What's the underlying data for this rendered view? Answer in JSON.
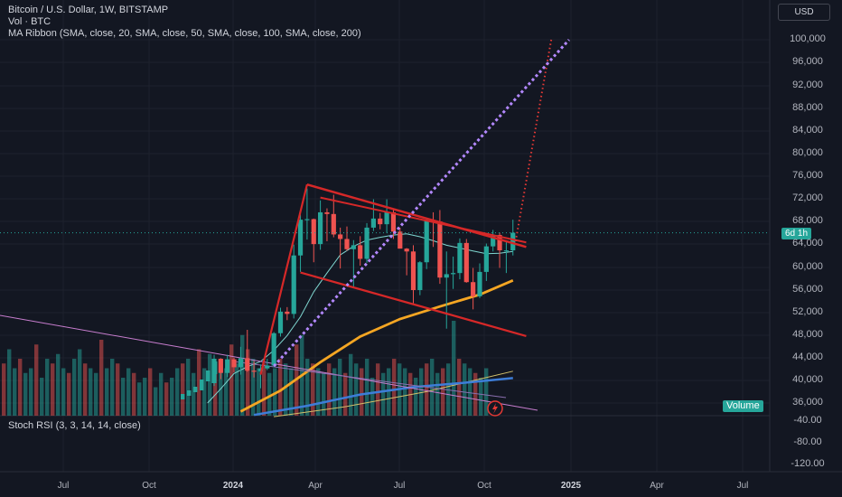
{
  "header": {
    "title": "Bitcoin / U.S. Dollar, 1W, BITSTAMP",
    "volume_label": "Vol · BTC",
    "ma_label": "MA Ribbon (SMA, close, 20, SMA, close, 50, SMA, close, 100, SMA, close, 200)",
    "stoch_label": "Stoch RSI (3, 3, 14, 14, close)"
  },
  "currency_button": "USD",
  "price_badge": "6d 1h",
  "volume_badge": "Volume",
  "colors": {
    "background": "#131722",
    "up": "#26a69a",
    "down": "#ef5350",
    "trendline": "#d62828",
    "projection_red": "#e53935",
    "projection_purple": "#b388ff",
    "sma20": "#7fd6d0",
    "sma50": "#f5a623",
    "sma100": "#3d7dd8",
    "sma200": "#d2c06a",
    "diag_line": "#c77dce"
  },
  "chart_data": {
    "type": "candlestick",
    "y_axis_ticks": [
      "100,000",
      "96,000",
      "92,000",
      "88,000",
      "84,000",
      "80,000",
      "76,000",
      "72,000",
      "68,000",
      "64,000",
      "60,000",
      "56,000",
      "52,000",
      "48,000",
      "44,000",
      "40,000",
      "36,000"
    ],
    "stoch_axis_ticks": [
      "-40.00",
      "-80.00",
      "-120.00"
    ],
    "x_axis_ticks": [
      {
        "label": "Jul",
        "bold": false
      },
      {
        "label": "Oct",
        "bold": false
      },
      {
        "label": "2024",
        "bold": true
      },
      {
        "label": "Apr",
        "bold": false
      },
      {
        "label": "Jul",
        "bold": false
      },
      {
        "label": "Oct",
        "bold": false
      },
      {
        "label": "2025",
        "bold": true
      },
      {
        "label": "Apr",
        "bold": false
      },
      {
        "label": "Jul",
        "bold": false
      }
    ],
    "ylim": [
      33500,
      102500
    ],
    "candles": [
      {
        "date": "2023-12-04",
        "o": 39500,
        "h": 44500,
        "l": 39000,
        "c": 43800
      },
      {
        "date": "2023-12-11",
        "o": 43800,
        "h": 43900,
        "l": 40200,
        "c": 41300
      },
      {
        "date": "2023-12-18",
        "o": 41300,
        "h": 44500,
        "l": 40600,
        "c": 43700
      },
      {
        "date": "2023-12-25",
        "o": 43700,
        "h": 44000,
        "l": 41400,
        "c": 42300
      },
      {
        "date": "2024-01-01",
        "o": 42300,
        "h": 45900,
        "l": 41000,
        "c": 43900
      },
      {
        "date": "2024-01-08",
        "o": 43900,
        "h": 48900,
        "l": 41500,
        "c": 41700
      },
      {
        "date": "2024-01-15",
        "o": 41700,
        "h": 43400,
        "l": 40500,
        "c": 41600
      },
      {
        "date": "2024-01-22",
        "o": 41600,
        "h": 42800,
        "l": 38600,
        "c": 42100
      },
      {
        "date": "2024-01-29",
        "o": 42100,
        "h": 43800,
        "l": 41800,
        "c": 42600
      },
      {
        "date": "2024-02-05",
        "o": 42600,
        "h": 48500,
        "l": 42300,
        "c": 48300
      },
      {
        "date": "2024-02-12",
        "o": 48300,
        "h": 52800,
        "l": 47700,
        "c": 52100
      },
      {
        "date": "2024-02-19",
        "o": 52100,
        "h": 52900,
        "l": 50600,
        "c": 51700
      },
      {
        "date": "2024-02-26",
        "o": 51700,
        "h": 63900,
        "l": 50900,
        "c": 62000
      },
      {
        "date": "2024-03-04",
        "o": 62000,
        "h": 69200,
        "l": 59100,
        "c": 68300
      },
      {
        "date": "2024-03-11",
        "o": 68300,
        "h": 73800,
        "l": 64800,
        "c": 68400
      },
      {
        "date": "2024-03-18",
        "o": 68400,
        "h": 68500,
        "l": 60800,
        "c": 64000
      },
      {
        "date": "2024-03-25",
        "o": 64000,
        "h": 71700,
        "l": 63000,
        "c": 69600
      },
      {
        "date": "2024-04-01",
        "o": 69600,
        "h": 70300,
        "l": 64500,
        "c": 69300
      },
      {
        "date": "2024-04-08",
        "o": 69300,
        "h": 72700,
        "l": 65200,
        "c": 65700
      },
      {
        "date": "2024-04-15",
        "o": 65700,
        "h": 66900,
        "l": 59700,
        "c": 64900
      },
      {
        "date": "2024-04-22",
        "o": 64900,
        "h": 67100,
        "l": 62800,
        "c": 63100
      },
      {
        "date": "2024-04-29",
        "o": 63100,
        "h": 64700,
        "l": 56500,
        "c": 63800
      },
      {
        "date": "2024-05-06",
        "o": 63800,
        "h": 65400,
        "l": 60200,
        "c": 61400
      },
      {
        "date": "2024-05-13",
        "o": 61400,
        "h": 67700,
        "l": 60700,
        "c": 66900
      },
      {
        "date": "2024-05-20",
        "o": 66900,
        "h": 71900,
        "l": 66300,
        "c": 68500
      },
      {
        "date": "2024-05-27",
        "o": 68500,
        "h": 69500,
        "l": 66600,
        "c": 67500
      },
      {
        "date": "2024-06-03",
        "o": 67500,
        "h": 71900,
        "l": 66000,
        "c": 69600
      },
      {
        "date": "2024-06-10",
        "o": 69600,
        "h": 70000,
        "l": 64900,
        "c": 66200
      },
      {
        "date": "2024-06-17",
        "o": 66200,
        "h": 66900,
        "l": 63400,
        "c": 63200
      },
      {
        "date": "2024-06-24",
        "o": 63200,
        "h": 63300,
        "l": 58500,
        "c": 62700
      },
      {
        "date": "2024-07-01",
        "o": 62700,
        "h": 63800,
        "l": 53600,
        "c": 55900
      },
      {
        "date": "2024-07-08",
        "o": 55900,
        "h": 61000,
        "l": 55000,
        "c": 60800
      },
      {
        "date": "2024-07-15",
        "o": 60800,
        "h": 68500,
        "l": 59600,
        "c": 68200
      },
      {
        "date": "2024-07-22",
        "o": 68200,
        "h": 69600,
        "l": 63500,
        "c": 68000
      },
      {
        "date": "2024-07-29",
        "o": 68000,
        "h": 70000,
        "l": 57000,
        "c": 58100
      },
      {
        "date": "2024-08-05",
        "o": 58100,
        "h": 62700,
        "l": 49100,
        "c": 58700
      },
      {
        "date": "2024-08-12",
        "o": 58700,
        "h": 61800,
        "l": 56100,
        "c": 58900
      },
      {
        "date": "2024-08-19",
        "o": 58900,
        "h": 65000,
        "l": 57800,
        "c": 64200
      },
      {
        "date": "2024-08-26",
        "o": 64200,
        "h": 64900,
        "l": 57200,
        "c": 57300
      },
      {
        "date": "2024-09-02",
        "o": 57300,
        "h": 59800,
        "l": 52500,
        "c": 54800
      },
      {
        "date": "2024-09-09",
        "o": 54800,
        "h": 60600,
        "l": 54500,
        "c": 59100
      },
      {
        "date": "2024-09-16",
        "o": 59100,
        "h": 64100,
        "l": 57500,
        "c": 63600
      },
      {
        "date": "2024-09-23",
        "o": 63600,
        "h": 66500,
        "l": 62700,
        "c": 65600
      },
      {
        "date": "2024-09-30",
        "o": 65600,
        "h": 66000,
        "l": 59800,
        "c": 62900
      },
      {
        "date": "2024-10-07",
        "o": 62900,
        "h": 64500,
        "l": 58900,
        "c": 62900
      },
      {
        "date": "2024-10-14",
        "o": 62900,
        "h": 68300,
        "l": 62000,
        "c": 66000
      }
    ],
    "volume_bars_relative": [
      0.55,
      0.7,
      0.5,
      0.6,
      0.45,
      0.5,
      0.75,
      0.4,
      0.6,
      0.55,
      0.65,
      0.5,
      0.45,
      0.6,
      0.7,
      0.55,
      0.5,
      0.45,
      0.8,
      0.5,
      0.6,
      0.55,
      0.4,
      0.5,
      0.45,
      0.35,
      0.4,
      0.5,
      0.3,
      0.45,
      0.35,
      0.4,
      0.5,
      0.55,
      0.6,
      0.45,
      0.7,
      0.5,
      0.65,
      0.55,
      0.6,
      0.5,
      0.75,
      0.55,
      0.85,
      0.7,
      0.6,
      0.5,
      0.55,
      0.45,
      0.5,
      0.6,
      0.55,
      0.5,
      0.75,
      0.85,
      0.6,
      0.55,
      0.5,
      0.45,
      0.55,
      0.5,
      0.6,
      0.45,
      0.65,
      0.55,
      0.5,
      0.6,
      0.4,
      0.55,
      0.45,
      0.5,
      0.6,
      0.55,
      0.5,
      0.45,
      0.4,
      0.5,
      0.55,
      0.6,
      0.45,
      0.5,
      0.55,
      1.0,
      0.6,
      0.55,
      0.5,
      0.45,
      0.4,
      0.5,
      0.55,
      0.45
    ],
    "sma20": [
      [
        -1,
        36000
      ],
      [
        1,
        38500
      ],
      [
        3,
        41200
      ],
      [
        5,
        42400
      ],
      [
        7,
        43300
      ],
      [
        9,
        45300
      ],
      [
        11,
        47900
      ],
      [
        13,
        51200
      ],
      [
        15,
        55600
      ],
      [
        17,
        58900
      ],
      [
        19,
        62100
      ],
      [
        21,
        63600
      ],
      [
        23,
        64700
      ],
      [
        25,
        65200
      ],
      [
        27,
        65600
      ],
      [
        29,
        65800
      ],
      [
        31,
        65300
      ],
      [
        33,
        64600
      ],
      [
        35,
        63800
      ],
      [
        37,
        63300
      ],
      [
        39,
        62800
      ],
      [
        41,
        62300
      ],
      [
        43,
        62400
      ],
      [
        45,
        62700
      ]
    ],
    "sma50": [
      [
        4,
        34500
      ],
      [
        10,
        38200
      ],
      [
        16,
        43200
      ],
      [
        22,
        47700
      ],
      [
        28,
        50800
      ],
      [
        34,
        53000
      ],
      [
        40,
        55100
      ],
      [
        45,
        57600
      ]
    ],
    "sma100": [
      [
        6,
        33900
      ],
      [
        14,
        35500
      ],
      [
        22,
        37500
      ],
      [
        30,
        38800
      ],
      [
        38,
        39600
      ],
      [
        45,
        40400
      ]
    ],
    "sma200": [
      [
        9,
        33600
      ],
      [
        20,
        35400
      ],
      [
        32,
        38000
      ],
      [
        45,
        41600
      ]
    ],
    "annotations": {
      "pattern": "bull flag",
      "flagpole": [
        [
          "2024-01-22",
          41000
        ],
        [
          "2024-03-11",
          74500
        ]
      ],
      "flag_upper": [
        [
          "2024-03-11",
          74500
        ],
        [
          "2024-10-28",
          63500
        ]
      ],
      "flag_lower": [
        [
          "2024-03-04",
          59000
        ],
        [
          "2024-10-28",
          47800
        ]
      ],
      "projection_red_target": 100000,
      "projection_purple_target": 100000
    }
  }
}
